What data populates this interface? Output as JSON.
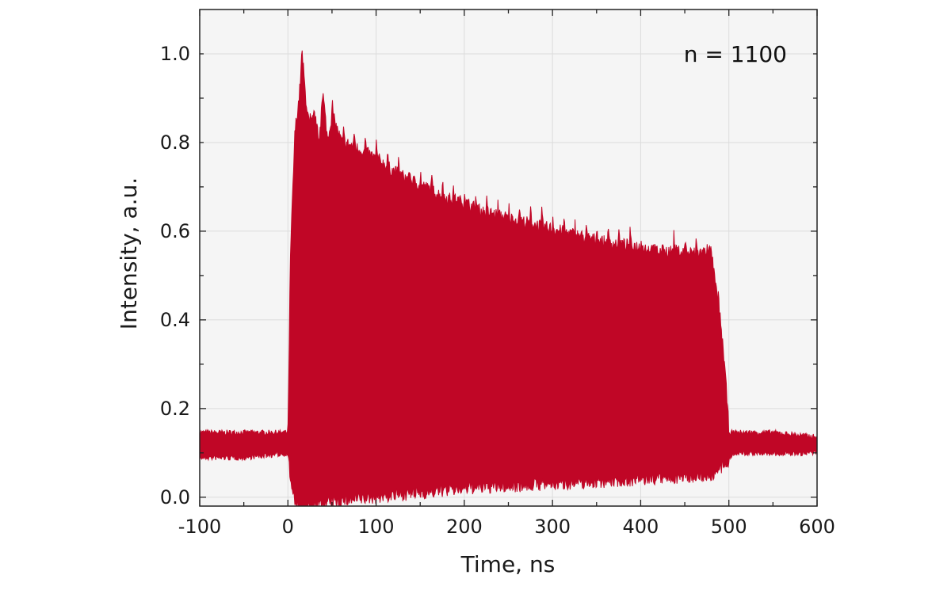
{
  "chart_data": {
    "type": "area",
    "xlabel": "Time, ns",
    "ylabel": "Intensity, a.u.",
    "xlim": [
      -100,
      600
    ],
    "ylim": [
      -0.02,
      1.1
    ],
    "xticks": [
      -100,
      0,
      100,
      200,
      300,
      400,
      500,
      600
    ],
    "yticks": [
      0.0,
      0.2,
      0.4,
      0.6,
      0.8,
      1.0
    ],
    "xtick_labels": [
      "-100",
      "0",
      "100",
      "200",
      "300",
      "400",
      "500",
      "600"
    ],
    "ytick_labels": [
      "0.0",
      "0.2",
      "0.4",
      "0.6",
      "0.8",
      "1.0"
    ],
    "grid": true,
    "annotation": "n = 1100",
    "colors": {
      "series": "#c00626",
      "plot_background": "#f5f5f5",
      "grid": "#dcdcdc",
      "axis": "#222222"
    },
    "series": [
      {
        "upper_envelope": {
          "x": [
            -100,
            -50,
            0,
            3,
            8,
            13,
            16,
            20,
            25,
            30,
            35,
            40,
            45,
            50,
            60,
            70,
            80,
            90,
            100,
            120,
            140,
            160,
            180,
            200,
            220,
            240,
            260,
            280,
            300,
            320,
            340,
            360,
            380,
            400,
            420,
            440,
            460,
            480,
            485,
            490,
            495,
            500,
            505,
            550,
            600
          ],
          "y": [
            0.15,
            0.15,
            0.15,
            0.55,
            0.82,
            0.9,
            1.0,
            0.9,
            0.82,
            0.86,
            0.8,
            0.9,
            0.8,
            0.86,
            0.8,
            0.79,
            0.78,
            0.77,
            0.76,
            0.73,
            0.71,
            0.69,
            0.67,
            0.66,
            0.64,
            0.63,
            0.62,
            0.61,
            0.6,
            0.59,
            0.58,
            0.57,
            0.565,
            0.56,
            0.55,
            0.55,
            0.545,
            0.55,
            0.47,
            0.4,
            0.3,
            0.15,
            0.15,
            0.15,
            0.14
          ]
        },
        "lower_envelope": {
          "x": [
            -100,
            -50,
            0,
            5,
            10,
            15,
            20,
            30,
            50,
            100,
            150,
            200,
            300,
            400,
            480,
            495,
            500,
            505,
            550,
            600
          ],
          "y": [
            0.09,
            0.09,
            0.1,
            0.02,
            -0.01,
            -0.02,
            -0.015,
            -0.01,
            0.0,
            0.01,
            0.02,
            0.03,
            0.04,
            0.05,
            0.06,
            0.08,
            0.09,
            0.1,
            0.1,
            0.1
          ]
        }
      }
    ]
  }
}
